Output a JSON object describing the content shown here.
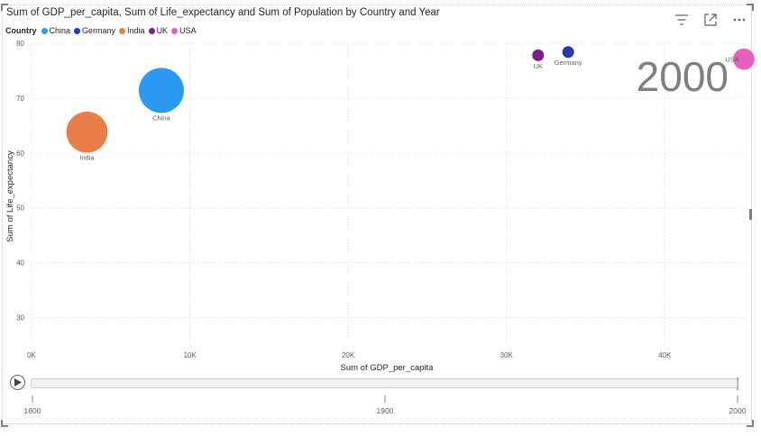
{
  "visual": {
    "title": "Sum of GDP_per_capita, Sum of Life_expectancy and Sum of Population by Country and Year"
  },
  "legend": {
    "title": "Country",
    "items": [
      {
        "label": "China",
        "color": "#2b9af3"
      },
      {
        "label": "Germany",
        "color": "#2a3aa8"
      },
      {
        "label": "India",
        "color": "#ea7e4a"
      },
      {
        "label": "UK",
        "color": "#7a1f86"
      },
      {
        "label": "USA",
        "color": "#e660c0"
      }
    ]
  },
  "toolbar": {
    "icons": [
      "filter-icon",
      "focus-mode-icon",
      "more-options-icon"
    ]
  },
  "play_axis": {
    "current_year_label": "2000",
    "ticks": [
      "1800",
      "1900",
      "2000"
    ],
    "range": [
      1800,
      2000
    ],
    "current": 2000
  },
  "chart_data": {
    "type": "scatter",
    "title": "Sum of GDP_per_capita, Sum of Life_expectancy and Sum of Population by Country and Year",
    "xlabel": "Sum of GDP_per_capita",
    "ylabel": "Sum of Life_expectancy",
    "xlim": [
      0,
      45000
    ],
    "ylim": [
      25,
      80
    ],
    "xticks": [
      0,
      10000,
      20000,
      30000,
      40000
    ],
    "xtick_labels": [
      "0K",
      "10K",
      "20K",
      "30K",
      "40K"
    ],
    "yticks": [
      30,
      40,
      50,
      60,
      70,
      80
    ],
    "ytick_labels": [
      "30",
      "40",
      "50",
      "60",
      "70",
      "80"
    ],
    "grid": true,
    "legend_position": "top-left",
    "size_encoding": "Sum of Population",
    "series": [
      {
        "name": "China",
        "color": "#2b9af3",
        "x": 8200,
        "y": 71.4,
        "size": 1262
      },
      {
        "name": "India",
        "color": "#ea7e4a",
        "x": 3500,
        "y": 63.8,
        "size": 1053
      },
      {
        "name": "UK",
        "color": "#7a1f86",
        "x": 32000,
        "y": 77.8,
        "size": 59
      },
      {
        "name": "Germany",
        "color": "#2a3aa8",
        "x": 33900,
        "y": 78.4,
        "size": 82
      },
      {
        "name": "USA",
        "color": "#e660c0",
        "x": 45000,
        "y": 77.1,
        "size": 282
      }
    ]
  }
}
